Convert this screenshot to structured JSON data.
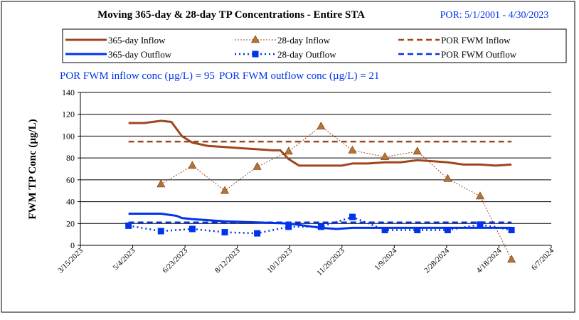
{
  "chart_data": {
    "type": "line",
    "title": "Moving 365-day & 28-day TP Concentrations - Entire STA",
    "subtitle": "POR: 5/1/2001 - 4/30/2023",
    "annotations": [
      "POR FWM inflow conc (µg/L) = 95",
      "POR FWM outflow conc (µg/L) = 21"
    ],
    "ylabel": "FWM TP Conc (µg/L)",
    "ylim": [
      0,
      140
    ],
    "yticks": [
      0,
      20,
      40,
      60,
      80,
      100,
      120,
      140
    ],
    "xlim": [
      "3/15/2023",
      "6/7/2024"
    ],
    "xticks": [
      "3/15/2023",
      "5/4/2023",
      "6/23/2023",
      "8/12/2023",
      "10/1/2023",
      "11/20/2023",
      "1/9/2024",
      "2/28/2024",
      "4/18/2024",
      "6/7/2024"
    ],
    "grid": true,
    "series": [
      {
        "name": "365-day Inflow",
        "color": "#a0461e",
        "style": "solid",
        "width": 3,
        "marker": "none",
        "x": [
          "4/30/2023",
          "5/15/2023",
          "5/31/2023",
          "6/10/2023",
          "6/20/2023",
          "6/30/2023",
          "7/15/2023",
          "7/31/2023",
          "8/15/2023",
          "8/31/2023",
          "9/15/2023",
          "9/22/2023",
          "9/30/2023",
          "10/10/2023",
          "10/31/2023",
          "11/20/2023",
          "11/30/2023",
          "12/15/2023",
          "12/31/2023",
          "1/15/2024",
          "1/31/2024",
          "2/15/2024",
          "2/29/2024",
          "3/15/2024",
          "3/31/2024",
          "4/15/2024",
          "4/30/2024"
        ],
        "values": [
          112,
          112,
          114,
          113,
          100,
          94,
          91,
          90,
          89,
          88,
          87,
          87,
          79,
          73,
          73,
          73,
          75,
          75,
          76,
          76,
          78,
          77,
          76,
          74,
          74,
          73,
          74
        ]
      },
      {
        "name": "28-day Inflow",
        "color": "#a0461e",
        "style": "dotted",
        "width": 1,
        "marker": "triangle",
        "marker_color": "#b87333",
        "x": [
          "4/30/2023",
          "5/31/2023",
          "6/30/2023",
          "7/31/2023",
          "8/31/2023",
          "9/30/2023",
          "10/31/2023",
          "11/30/2023",
          "12/31/2023",
          "1/31/2024",
          "2/29/2024",
          "3/31/2024",
          "4/30/2024"
        ],
        "values": [
          null,
          56,
          73,
          50,
          72,
          86,
          109,
          87,
          81,
          86,
          61,
          45,
          -13
        ]
      },
      {
        "name": "POR FWM Inflow",
        "color": "#a0461e",
        "style": "dashed",
        "width": 2.5,
        "marker": "none",
        "x": [
          "4/30/2023",
          "4/30/2024"
        ],
        "values": [
          95,
          95
        ]
      },
      {
        "name": "365-day Outflow",
        "color": "#0033ee",
        "style": "solid",
        "width": 3,
        "marker": "none",
        "x": [
          "4/30/2023",
          "5/31/2023",
          "6/15/2023",
          "6/20/2023",
          "6/30/2023",
          "7/31/2023",
          "8/31/2023",
          "9/30/2023",
          "10/31/2023",
          "11/15/2023",
          "11/30/2023",
          "12/31/2023",
          "4/30/2024"
        ],
        "values": [
          29,
          29,
          27,
          25,
          24,
          22,
          21,
          20,
          16,
          15,
          16,
          16,
          16
        ]
      },
      {
        "name": "28-day Outflow",
        "color": "#0033ee",
        "style": "dotted",
        "width": 2.5,
        "marker": "square",
        "marker_color": "#0033ee",
        "x": [
          "4/30/2023",
          "5/31/2023",
          "6/30/2023",
          "7/31/2023",
          "8/31/2023",
          "9/30/2023",
          "10/31/2023",
          "11/30/2023",
          "12/31/2023",
          "1/31/2024",
          "2/29/2024",
          "3/31/2024",
          "4/30/2024"
        ],
        "values": [
          18,
          13,
          15,
          12,
          11,
          17,
          17,
          26,
          14,
          14,
          14,
          19,
          14
        ]
      },
      {
        "name": "POR FWM Outflow",
        "color": "#0033ee",
        "style": "dashed",
        "width": 2.5,
        "marker": "none",
        "x": [
          "4/30/2023",
          "4/30/2024"
        ],
        "values": [
          21,
          21
        ]
      }
    ]
  }
}
